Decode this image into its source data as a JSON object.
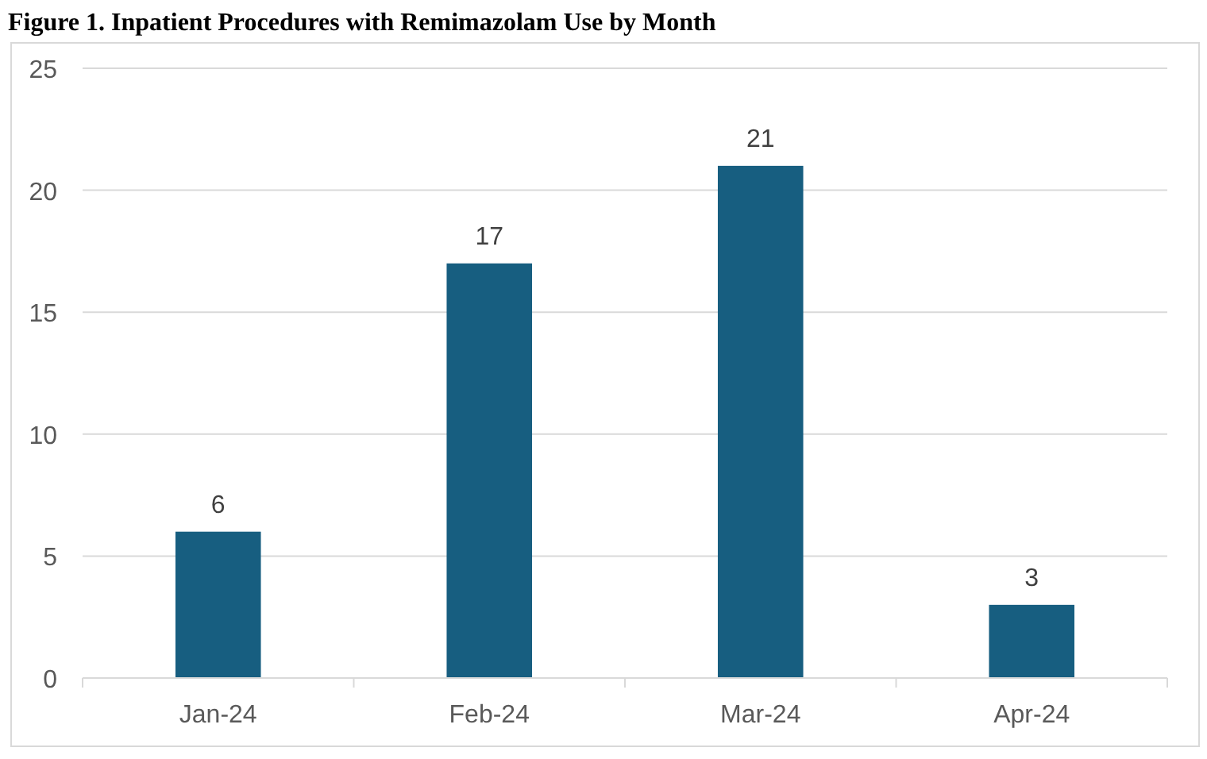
{
  "chart_data": {
    "type": "bar",
    "title": "Figure 1. Inpatient Procedures with Remimazolam Use by Month",
    "categories": [
      "Jan-24",
      "Feb-24",
      "Mar-24",
      "Apr-24"
    ],
    "values": [
      6,
      17,
      21,
      3
    ],
    "color": "#175e80",
    "ylim": [
      0,
      25
    ],
    "yticks": [
      0,
      5,
      10,
      15,
      20,
      25
    ],
    "grid": "y",
    "data_labels": true
  }
}
